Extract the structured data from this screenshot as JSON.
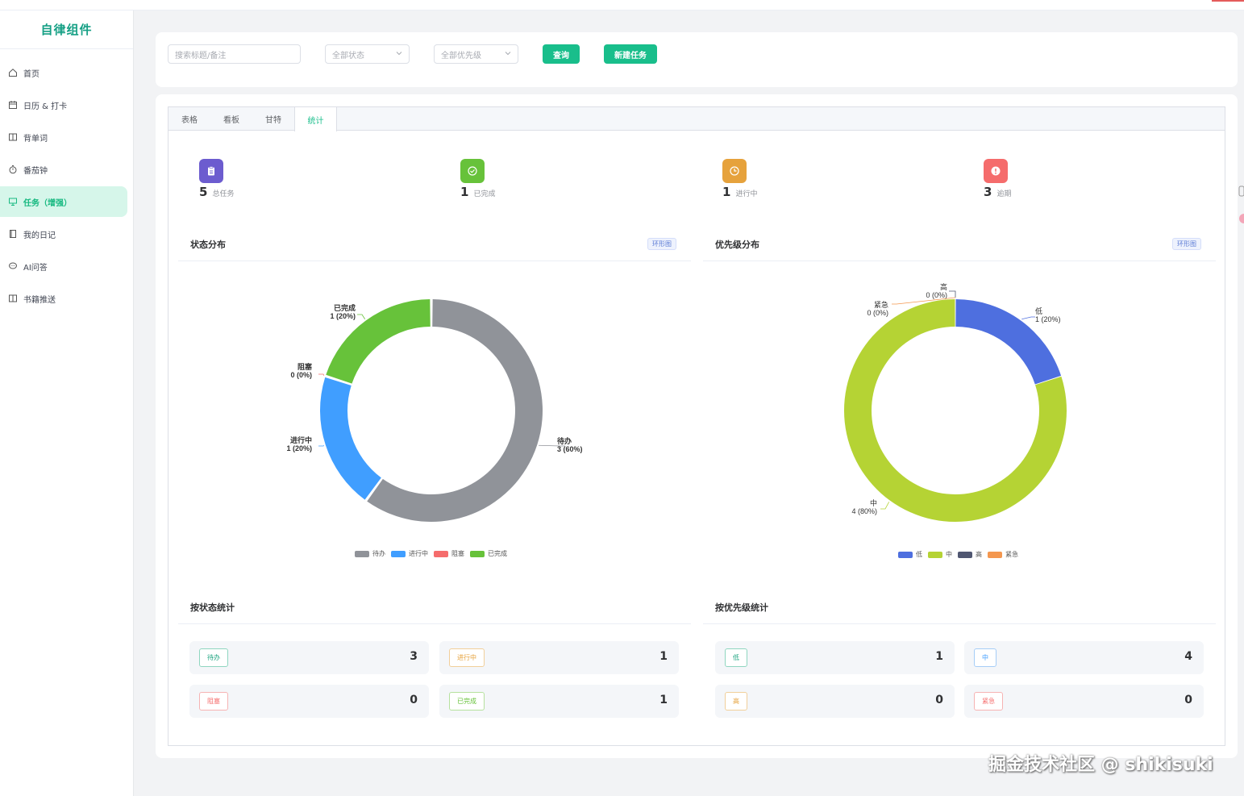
{
  "sidebar": {
    "brand": "自律组件",
    "items": [
      {
        "label": "首页",
        "icon": "home-icon",
        "active": false
      },
      {
        "label": "日历 & 打卡",
        "icon": "calendar-icon",
        "active": false
      },
      {
        "label": "背单词",
        "icon": "book-icon",
        "active": false
      },
      {
        "label": "番茄钟",
        "icon": "timer-icon",
        "active": false
      },
      {
        "label": "任务（增强）",
        "icon": "presentation-icon",
        "active": true
      },
      {
        "label": "我的日记",
        "icon": "notebook-icon",
        "active": false
      },
      {
        "label": "AI问答",
        "icon": "chat-icon",
        "active": false
      },
      {
        "label": "书籍推送",
        "icon": "book-open-icon",
        "active": false
      }
    ]
  },
  "filters": {
    "search_placeholder": "搜索标题/备注",
    "status_select": "全部状态",
    "priority_select": "全部优先级",
    "query_label": "查询",
    "new_task_label": "新建任务"
  },
  "tabs": [
    "表格",
    "看板",
    "甘特",
    "统计"
  ],
  "active_tab": "统计",
  "stats": [
    {
      "value": "5",
      "label": "总任务",
      "color": "#6c5ccf",
      "icon": "clipboard-icon"
    },
    {
      "value": "1",
      "label": "已完成",
      "color": "#67c23a",
      "icon": "check-circle-icon"
    },
    {
      "value": "1",
      "label": "进行中",
      "color": "#e6a23c",
      "icon": "clock-icon"
    },
    {
      "value": "3",
      "label": "逾期",
      "color": "#f56c6c",
      "icon": "alert-circle-icon"
    }
  ],
  "status_section": {
    "title": "状态分布",
    "tag": "环形图"
  },
  "priority_section": {
    "title": "优先级分布",
    "tag": "环形图"
  },
  "chart_data": [
    {
      "type": "pie",
      "variant": "donut",
      "title": "状态分布",
      "categories": [
        "待办",
        "进行中",
        "阻塞",
        "已完成"
      ],
      "values": [
        3,
        1,
        0,
        1
      ],
      "labels": [
        "3 (60%)",
        "1 (20%)",
        "0 (0%)",
        "1 (20%)"
      ],
      "colors": [
        "#909399",
        "#409eff",
        "#f56c6c",
        "#67c23a"
      ],
      "legend": "bottom"
    },
    {
      "type": "pie",
      "variant": "donut",
      "title": "优先级分布",
      "categories": [
        "低",
        "中",
        "高",
        "紧急"
      ],
      "values": [
        1,
        4,
        0,
        0
      ],
      "labels": [
        "1 (20%)",
        "4 (80%)",
        "0 (0%)",
        "0 (0%)"
      ],
      "colors": [
        "#4e6fdf",
        "#b5d334",
        "#505771",
        "#f4974f"
      ],
      "legend": "bottom"
    }
  ],
  "status_count_section": {
    "title": "按状态统计",
    "items": [
      {
        "label": "待办",
        "value": "3",
        "color": "#19a37e"
      },
      {
        "label": "进行中",
        "value": "1",
        "color": "#e6a23c"
      },
      {
        "label": "阻塞",
        "value": "0",
        "color": "#f56c6c"
      },
      {
        "label": "已完成",
        "value": "1",
        "color": "#67c23a"
      }
    ]
  },
  "priority_count_section": {
    "title": "按优先级统计",
    "items": [
      {
        "label": "低",
        "value": "1",
        "color": "#19a37e"
      },
      {
        "label": "中",
        "value": "4",
        "color": "#409eff"
      },
      {
        "label": "高",
        "value": "0",
        "color": "#e6a23c"
      },
      {
        "label": "紧急",
        "value": "0",
        "color": "#f56c6c"
      }
    ]
  },
  "watermark": "掘金技术社区 @ shikisuki"
}
